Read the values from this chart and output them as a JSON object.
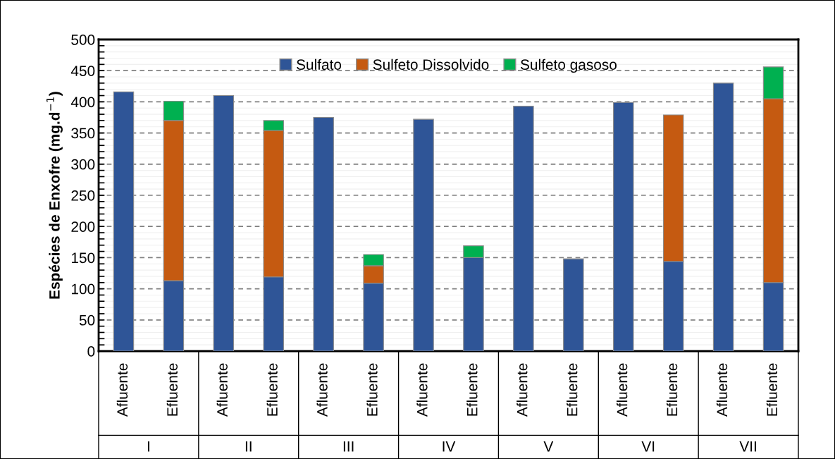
{
  "chart_data": {
    "type": "bar",
    "stacked": true,
    "ylabel": "Espécies de Enxofre (mg.d$^{−1}$)",
    "categories": [
      "Afluente",
      "Efluente",
      "Afluente",
      "Efluente",
      "Afluente",
      "Efluente",
      "Afluente",
      "Efluente",
      "Afluente",
      "Efluente",
      "Afluente",
      "Efluente",
      "Afluente",
      "Efluente"
    ],
    "annotations": [
      "I",
      "II",
      "III",
      "IV",
      "V",
      "VI",
      "VII"
    ],
    "series": [
      {
        "name": "Sulfato",
        "color": "#2f5597",
        "values": [
          416,
          113,
          410,
          119,
          375,
          109,
          372,
          150,
          393,
          148,
          399,
          144,
          430,
          110
        ]
      },
      {
        "name": "Sulfeto Dissolvido",
        "color": "#c55a11",
        "values": [
          null,
          257,
          null,
          235,
          null,
          28,
          null,
          null,
          null,
          null,
          null,
          235,
          null,
          295
        ]
      },
      {
        "name": "Sulfeto gasoso",
        "color": "#00b050",
        "values": [
          null,
          31,
          null,
          16,
          null,
          18,
          null,
          19,
          null,
          null,
          null,
          null,
          null,
          51
        ]
      }
    ],
    "ylim": [
      0,
      500
    ],
    "yticks": [
      0,
      {
        "value": 10,
        "label": null
      },
      {
        "value": 20,
        "label": null
      },
      {
        "value": 30,
        "label": null
      },
      {
        "value": 40,
        "label": null
      },
      50,
      {
        "value": 60,
        "label": null
      },
      {
        "value": 70,
        "label": null
      },
      {
        "value": 80,
        "label": null
      },
      {
        "value": 90,
        "label": null
      },
      100,
      {
        "value": 110,
        "label": null
      },
      {
        "value": 120,
        "label": null
      },
      {
        "value": 130,
        "label": null
      },
      {
        "value": 140,
        "label": null
      },
      150,
      {
        "value": 160,
        "label": null
      },
      {
        "value": 170,
        "label": null
      },
      {
        "value": 180,
        "label": null
      },
      {
        "value": 190,
        "label": null
      },
      200,
      {
        "value": 210,
        "label": null
      },
      {
        "value": 220,
        "label": null
      },
      {
        "value": 230,
        "label": null
      },
      {
        "value": 240,
        "label": null
      },
      250,
      {
        "value": 260,
        "label": null
      },
      {
        "value": 270,
        "label": null
      },
      {
        "value": 280,
        "label": null
      },
      {
        "value": 290,
        "label": null
      },
      300,
      {
        "value": 310,
        "label": null
      },
      {
        "value": 320,
        "label": null
      },
      {
        "value": 330,
        "label": null
      },
      {
        "value": 340,
        "label": null
      },
      350,
      {
        "value": 360,
        "label": null
      },
      {
        "value": 370,
        "label": null
      },
      {
        "value": 380,
        "label": null
      },
      {
        "value": 390,
        "label": null
      },
      400,
      {
        "value": 410,
        "label": null
      },
      {
        "value": 420,
        "label": null
      },
      {
        "value": 430,
        "label": null
      },
      {
        "value": 440,
        "label": null
      },
      450,
      {
        "value": 460,
        "label": null
      },
      {
        "value": 470,
        "label": null
      },
      {
        "value": 480,
        "label": null
      },
      {
        "value": 490,
        "label": null
      },
      500
    ],
    "grid": "y",
    "legend": "top"
  }
}
